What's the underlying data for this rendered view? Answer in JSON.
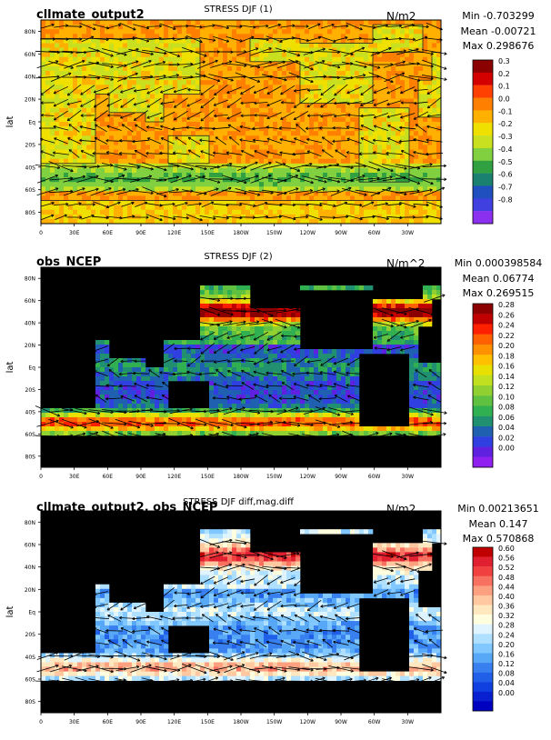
{
  "panels": [
    {
      "name": "cllmate_output2",
      "title": "STRESS DJF (1)",
      "units": "N/m2",
      "stats": {
        "min": "Min -0.703299",
        "mean": "Mean -0.00721",
        "max": "Max 0.298676"
      },
      "ylabel": "lat",
      "kind": "model",
      "colorbar": {
        "labels": [
          "0.3",
          "0.2",
          "0.1",
          "0.0",
          "-0.1",
          "-0.2",
          "-0.3",
          "-0.4",
          "-0.5",
          "-0.6",
          "-0.7",
          "-0.8"
        ],
        "colors": [
          "#8b0000",
          "#d40000",
          "#ff4000",
          "#ff8000",
          "#ffb000",
          "#f0e000",
          "#c8e020",
          "#80d040",
          "#30a040",
          "#1a8070",
          "#2050c0",
          "#4040e0",
          "#8c30f0"
        ]
      }
    },
    {
      "name": "obs_NCEP",
      "title": "STRESS DJF (2)",
      "units": "N/m^2",
      "stats": {
        "min": "Min 0.000398584",
        "mean": "Mean 0.06774",
        "max": "Max 0.269515"
      },
      "ylabel": "lat",
      "kind": "obs",
      "colorbar": {
        "labels": [
          "0.28",
          "0.26",
          "0.24",
          "0.22",
          "0.20",
          "0.18",
          "0.16",
          "0.14",
          "0.12",
          "0.10",
          "0.08",
          "0.06",
          "0.04",
          "0.02",
          "0.00"
        ],
        "colors": [
          "#8b0000",
          "#c00000",
          "#ff2000",
          "#ff6000",
          "#ff9000",
          "#ffc000",
          "#e8e000",
          "#c0e020",
          "#90d030",
          "#60c040",
          "#30b050",
          "#209070",
          "#2060b0",
          "#3040e0",
          "#6020e0",
          "#9020f0"
        ]
      }
    },
    {
      "name": "cllmate_output2, obs_NCEP",
      "title": "STRESS DJF diff,mag.diff",
      "units": "N/m2",
      "stats": {
        "min": "Min 0.00213651",
        "mean": "Mean 0.147",
        "max": "Max 0.570868"
      },
      "ylabel": "lat",
      "kind": "diff",
      "colorbar": {
        "labels": [
          "0.60",
          "0.56",
          "0.52",
          "0.48",
          "0.44",
          "0.40",
          "0.36",
          "0.32",
          "0.28",
          "0.24",
          "0.20",
          "0.16",
          "0.12",
          "0.08",
          "0.04",
          "0.00"
        ],
        "colors": [
          "#c00000",
          "#e02030",
          "#f04040",
          "#f87060",
          "#fca080",
          "#ffc8a0",
          "#ffe8c0",
          "#ffffe0",
          "#e0f4ff",
          "#b0e0ff",
          "#80c8ff",
          "#58a8f8",
          "#3880f0",
          "#2060e8",
          "#1040e0",
          "#0820d0",
          "#0000c0"
        ]
      }
    }
  ],
  "axes": {
    "yticks": [
      "80N",
      "60N",
      "40N",
      "20N",
      "Eq",
      "20S",
      "40S",
      "60S",
      "80S"
    ],
    "xticks": [
      "0",
      "30E",
      "60E",
      "90E",
      "120E",
      "150E",
      "180W",
      "150W",
      "120W",
      "90W",
      "60W",
      "30W"
    ]
  }
}
